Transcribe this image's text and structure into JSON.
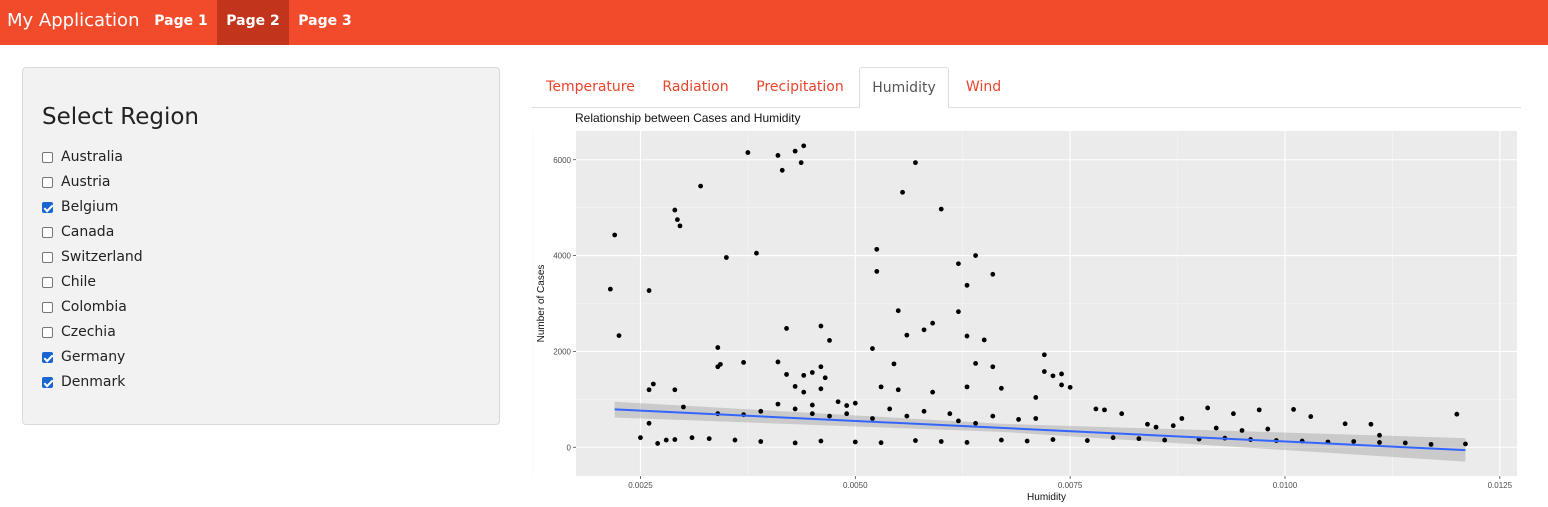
{
  "app": {
    "title": "My Application"
  },
  "nav": {
    "items": [
      {
        "label": "Page 1",
        "active": false
      },
      {
        "label": "Page 2",
        "active": true
      },
      {
        "label": "Page 3",
        "active": false
      }
    ]
  },
  "colors": {
    "navbar": "#f14b2c",
    "nav_active": "#c2351c",
    "tab_link": "#e8452b",
    "fit_line": "#3366ff",
    "checkbox": "#1966d2"
  },
  "sidebar": {
    "title": "Select Region",
    "regions": [
      {
        "label": "Australia",
        "checked": false
      },
      {
        "label": "Austria",
        "checked": false
      },
      {
        "label": "Belgium",
        "checked": true
      },
      {
        "label": "Canada",
        "checked": false
      },
      {
        "label": "Switzerland",
        "checked": false
      },
      {
        "label": "Chile",
        "checked": false
      },
      {
        "label": "Colombia",
        "checked": false
      },
      {
        "label": "Czechia",
        "checked": false
      },
      {
        "label": "Germany",
        "checked": true
      },
      {
        "label": "Denmark",
        "checked": true
      }
    ]
  },
  "tabs": [
    {
      "label": "Temperature",
      "active": false
    },
    {
      "label": "Radiation",
      "active": false
    },
    {
      "label": "Precipitation",
      "active": false
    },
    {
      "label": "Humidity",
      "active": true
    },
    {
      "label": "Wind",
      "active": false
    }
  ],
  "chart_data": {
    "type": "scatter",
    "title": "Relationship between Cases and Humidity",
    "xlabel": "Humidity",
    "ylabel": "Number of Cases",
    "xlim": [
      0.00175,
      0.0127
    ],
    "ylim": [
      -600,
      6600
    ],
    "xticks": [
      0.0025,
      0.005,
      0.0075,
      0.01,
      0.0125
    ],
    "xtick_labels": [
      "0.0025",
      "0.0050",
      "0.0075",
      "0.0100",
      "0.0125"
    ],
    "yticks": [
      0,
      2000,
      4000,
      6000
    ],
    "ytick_labels": [
      "0",
      "2000",
      "4000",
      "6000"
    ],
    "grid": true,
    "fit_line": {
      "x": [
        0.0022,
        0.0121
      ],
      "y": [
        790,
        -60
      ]
    },
    "confidence_band": {
      "x": [
        0.0022,
        0.0067,
        0.0121
      ],
      "upper": [
        950,
        490,
        190
      ],
      "lower": [
        620,
        320,
        -300
      ]
    },
    "points": [
      [
        0.00215,
        3300
      ],
      [
        0.0022,
        4430
      ],
      [
        0.00225,
        2330
      ],
      [
        0.0026,
        3270
      ],
      [
        0.0026,
        1200
      ],
      [
        0.00265,
        1320
      ],
      [
        0.0029,
        4950
      ],
      [
        0.00293,
        4750
      ],
      [
        0.00296,
        4620
      ],
      [
        0.0032,
        5450
      ],
      [
        0.0029,
        1200
      ],
      [
        0.003,
        840
      ],
      [
        0.0035,
        3960
      ],
      [
        0.00385,
        4050
      ],
      [
        0.0034,
        2080
      ],
      [
        0.00343,
        1730
      ],
      [
        0.0034,
        1680
      ],
      [
        0.00375,
        6150
      ],
      [
        0.0041,
        6090
      ],
      [
        0.00415,
        5780
      ],
      [
        0.0042,
        2480
      ],
      [
        0.0043,
        6180
      ],
      [
        0.00437,
        5940
      ],
      [
        0.0044,
        6290
      ],
      [
        0.0037,
        1770
      ],
      [
        0.0041,
        1780
      ],
      [
        0.0042,
        1520
      ],
      [
        0.0043,
        1270
      ],
      [
        0.0044,
        1500
      ],
      [
        0.0045,
        1560
      ],
      [
        0.0046,
        1680
      ],
      [
        0.0046,
        2530
      ],
      [
        0.0047,
        2230
      ],
      [
        0.00465,
        1450
      ],
      [
        0.0052,
        2060
      ],
      [
        0.00525,
        4130
      ],
      [
        0.00525,
        3670
      ],
      [
        0.0055,
        2850
      ],
      [
        0.00545,
        1740
      ],
      [
        0.00555,
        5320
      ],
      [
        0.0057,
        5940
      ],
      [
        0.006,
        4970
      ],
      [
        0.0056,
        2340
      ],
      [
        0.0058,
        2450
      ],
      [
        0.0059,
        2590
      ],
      [
        0.0062,
        3830
      ],
      [
        0.0063,
        3380
      ],
      [
        0.0064,
        4000
      ],
      [
        0.0065,
        2240
      ],
      [
        0.0063,
        2320
      ],
      [
        0.0062,
        2830
      ],
      [
        0.0066,
        3610
      ],
      [
        0.0066,
        1680
      ],
      [
        0.0064,
        1750
      ],
      [
        0.0063,
        1260
      ],
      [
        0.0067,
        1230
      ],
      [
        0.0071,
        1040
      ],
      [
        0.0072,
        1930
      ],
      [
        0.0072,
        1580
      ],
      [
        0.0073,
        1490
      ],
      [
        0.0074,
        1300
      ],
      [
        0.0075,
        1250
      ],
      [
        0.0074,
        1530
      ],
      [
        0.0055,
        1200
      ],
      [
        0.0059,
        1150
      ],
      [
        0.0053,
        1260
      ],
      [
        0.0048,
        950
      ],
      [
        0.0049,
        870
      ],
      [
        0.005,
        920
      ],
      [
        0.0044,
        1150
      ],
      [
        0.0046,
        1220
      ],
      [
        0.0045,
        880
      ],
      [
        0.0028,
        150
      ],
      [
        0.0029,
        160
      ],
      [
        0.0031,
        200
      ],
      [
        0.0027,
        80
      ],
      [
        0.0026,
        500
      ],
      [
        0.0025,
        200
      ],
      [
        0.0033,
        180
      ],
      [
        0.0036,
        150
      ],
      [
        0.0039,
        120
      ],
      [
        0.0043,
        90
      ],
      [
        0.0046,
        130
      ],
      [
        0.005,
        110
      ],
      [
        0.0053,
        95
      ],
      [
        0.0057,
        140
      ],
      [
        0.006,
        120
      ],
      [
        0.0063,
        100
      ],
      [
        0.0067,
        150
      ],
      [
        0.007,
        130
      ],
      [
        0.0073,
        160
      ],
      [
        0.0077,
        140
      ],
      [
        0.008,
        200
      ],
      [
        0.0083,
        180
      ],
      [
        0.0086,
        150
      ],
      [
        0.009,
        170
      ],
      [
        0.0093,
        190
      ],
      [
        0.0096,
        160
      ],
      [
        0.0099,
        140
      ],
      [
        0.0102,
        130
      ],
      [
        0.0105,
        110
      ],
      [
        0.0108,
        120
      ],
      [
        0.0111,
        100
      ],
      [
        0.0114,
        90
      ],
      [
        0.0117,
        60
      ],
      [
        0.012,
        690
      ],
      [
        0.0121,
        70
      ],
      [
        0.0078,
        800
      ],
      [
        0.0079,
        780
      ],
      [
        0.0081,
        700
      ],
      [
        0.0088,
        600
      ],
      [
        0.0091,
        820
      ],
      [
        0.0094,
        700
      ],
      [
        0.0097,
        780
      ],
      [
        0.0101,
        790
      ],
      [
        0.0103,
        640
      ],
      [
        0.0107,
        490
      ],
      [
        0.011,
        480
      ],
      [
        0.0111,
        250
      ],
      [
        0.0087,
        450
      ],
      [
        0.0085,
        420
      ],
      [
        0.0084,
        480
      ],
      [
        0.0092,
        400
      ],
      [
        0.0095,
        350
      ],
      [
        0.0098,
        380
      ],
      [
        0.0071,
        600
      ],
      [
        0.0069,
        580
      ],
      [
        0.0066,
        650
      ],
      [
        0.0064,
        500
      ],
      [
        0.0062,
        550
      ],
      [
        0.0061,
        700
      ],
      [
        0.0058,
        750
      ],
      [
        0.0056,
        650
      ],
      [
        0.0054,
        800
      ],
      [
        0.0052,
        600
      ],
      [
        0.0049,
        700
      ],
      [
        0.0047,
        650
      ],
      [
        0.0045,
        700
      ],
      [
        0.0043,
        800
      ],
      [
        0.0041,
        900
      ],
      [
        0.0039,
        750
      ],
      [
        0.0037,
        680
      ],
      [
        0.0034,
        700
      ]
    ]
  }
}
